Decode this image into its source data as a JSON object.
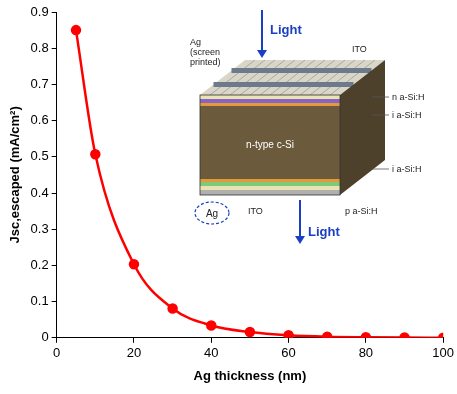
{
  "chart_data": {
    "type": "line",
    "x_label": "Ag thickness (nm)",
    "y_label": "Jsc,escaped (mA/cm²)",
    "x": [
      5,
      10,
      20,
      30,
      40,
      50,
      60,
      70,
      80,
      90,
      100
    ],
    "values": [
      0.85,
      0.507,
      0.203,
      0.081,
      0.034,
      0.016,
      0.007,
      0.003,
      0.0015,
      0.0007,
      0.0003
    ],
    "color": "#ff0000",
    "marker": "circle",
    "line_style": "solid",
    "xlim": [
      0,
      100
    ],
    "xticks": [
      0,
      20,
      40,
      60,
      80,
      100
    ],
    "ylim": [
      0,
      0.9
    ],
    "yticks": [
      0,
      0.1,
      0.2,
      0.3,
      0.4,
      0.5,
      0.6,
      0.7,
      0.8,
      0.9
    ],
    "grid": false,
    "annotations": [
      "Light",
      "Ag (screen printed)",
      "ITO",
      "n a-Si:H",
      "i a-Si:H",
      "n-type c-Si",
      "i a-Si:H",
      "Ag",
      "ITO",
      "p a-Si:H",
      "Light"
    ]
  }
}
